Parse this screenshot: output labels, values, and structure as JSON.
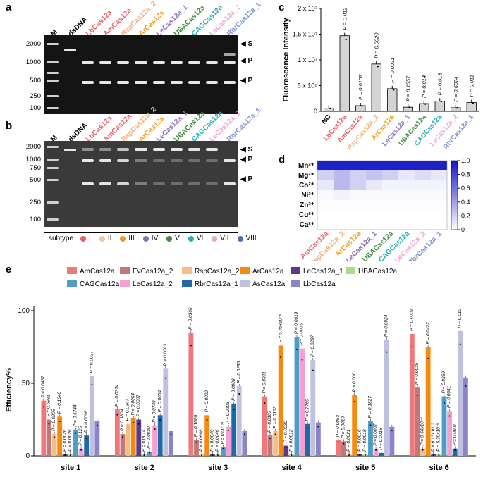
{
  "panels": {
    "a": "a",
    "b": "b",
    "c": "c",
    "d": "d",
    "e": "e"
  },
  "gel": {
    "marker_label": "M",
    "dsdna_label": "dsDNA",
    "ladder": [
      "2000",
      "1000",
      "750",
      "500",
      "250",
      "100"
    ],
    "arrow_s": "S",
    "arrow_p": "P",
    "lanes": [
      {
        "name": "LbCas12a",
        "color": "#e8616b"
      },
      {
        "name": "AmCas12a",
        "color": "#e8616b"
      },
      {
        "name": "RspCas12a_2",
        "color": "#f2b27a"
      },
      {
        "name": "ArCas12a",
        "color": "#f29a1d"
      },
      {
        "name": "LeCas12a_1",
        "color": "#8b6fb5"
      },
      {
        "name": "UBACas12a",
        "color": "#3e8a3a"
      },
      {
        "name": "CAGCas12a",
        "color": "#2ab0b8"
      },
      {
        "name": "LeCas12a_2",
        "color": "#f0a6cf"
      },
      {
        "name": "RbrCas12a_1",
        "color": "#7f93c7"
      }
    ]
  },
  "subtype_legend": {
    "title": "subtype",
    "items": [
      {
        "label": "I",
        "color": "#e8616b"
      },
      {
        "label": "II",
        "color": "#f2c8a0"
      },
      {
        "label": "III",
        "color": "#f29a1d"
      },
      {
        "label": "IV",
        "color": "#8b6fb5"
      },
      {
        "label": "V",
        "color": "#3e8a3a"
      },
      {
        "label": "VI",
        "color": "#2ab0b8"
      },
      {
        "label": "VII",
        "color": "#f0a6cf"
      },
      {
        "label": "VIII",
        "color": "#4a6cb8"
      }
    ]
  },
  "chart_data": [
    {
      "type": "bar",
      "ylabel": "Fluorescence Intensity",
      "ytick_labels": [
        "0",
        "5 x 10⁶",
        "1 x 10⁷",
        "1.5 x 10⁷",
        "2 x 10⁷"
      ],
      "ylim": [
        0,
        20000000
      ],
      "categories": [
        "NC",
        "LbCas12a",
        "AmCas12a",
        "RspCas12a_2",
        "ArCas12a",
        "LeCas12a_1",
        "UBACas12a",
        "CAGCas12a",
        "LeCas12a_2",
        "RbrCas12a_1"
      ],
      "category_colors": [
        "#000000",
        "#e8616b",
        "#e8616b",
        "#f2b27a",
        "#f29a1d",
        "#8b6fb5",
        "#3e8a3a",
        "#2ab0b8",
        "#f0a6cf",
        "#7f93c7"
      ],
      "values": [
        600000,
        14700000,
        1100000,
        9200000,
        4400000,
        800000,
        1500000,
        2000000,
        700000,
        1700000
      ],
      "pvalues": [
        "",
        "P = 0.012",
        "P = 0.0107",
        "P = 0.0020",
        "P = 0.0021",
        "P = 0.1557",
        "P = 0.014",
        "P = 0.018",
        "P = 0.6074",
        "P = 0.011"
      ]
    },
    {
      "type": "heatmap",
      "rows": [
        "Mn²⁺",
        "Mg²⁺",
        "Co²⁺",
        "Ni²⁺",
        "Zn²⁺",
        "Cu²⁺",
        "Ca²⁺"
      ],
      "columns": [
        "AmCas12a",
        "RspCas12a_2",
        "ArCas12a",
        "LeCas12a_1",
        "UBACas12a",
        "CAGCas12a",
        "LeCas12a_2",
        "RbrCas12a_1"
      ],
      "column_colors": [
        "#e8616b",
        "#f2b27a",
        "#f29a1d",
        "#8b6fb5",
        "#3e8a3a",
        "#2ab0b8",
        "#f0a6cf",
        "#7f93c7"
      ],
      "values": [
        [
          0.95,
          0.95,
          0.95,
          0.95,
          0.95,
          0.95,
          0.95,
          0.95
        ],
        [
          0.2,
          0.3,
          0.2,
          0.25,
          0.2,
          0.1,
          0.15,
          0.1
        ],
        [
          0.1,
          0.3,
          0.2,
          0.1,
          0.05,
          0.05,
          0.05,
          0.05
        ],
        [
          0.02,
          0.05,
          0.02,
          0.02,
          0.02,
          0.02,
          0.02,
          0.02
        ],
        [
          0.01,
          0.01,
          0.01,
          0.01,
          0.01,
          0.01,
          0.01,
          0.01
        ],
        [
          0.0,
          0.0,
          0.0,
          0.0,
          0.0,
          0.0,
          0.0,
          0.0
        ],
        [
          0.0,
          0.0,
          0.0,
          0.0,
          0.0,
          0.0,
          0.0,
          0.0
        ]
      ],
      "colorbar_ticks": [
        "0",
        "0.2",
        "0.4",
        "0.6",
        "0.8",
        "1.0"
      ],
      "range": [
        0,
        1
      ]
    },
    {
      "type": "bar",
      "ylabel": "Efficiency%",
      "ylim": [
        0,
        100
      ],
      "yticks": [
        "0",
        "50",
        "100"
      ],
      "categories": [
        "site 1",
        "site 2",
        "site 3",
        "site 4",
        "site 5",
        "site 6"
      ],
      "series": [
        {
          "name": "AmCas12a",
          "color": "#f0787c",
          "values": [
            38,
            32,
            85,
            41,
            11,
            84
          ],
          "pvalues": [
            "P = 0.0487",
            "P = 0.0314",
            "P = 0.0366",
            "P = 0.0391",
            "P = 0.0053",
            "P = 0.0002"
          ]
        },
        {
          "name": "EvCas12a_2",
          "color": "#c07878",
          "values": [
            25,
            15,
            11,
            14,
            10,
            47
          ],
          "pvalues": [
            "P = 0.5981",
            "P = 0.3804",
            "P = 0.1086",
            "P = 0.0107",
            "P = 0.0019",
            "P = 0.0035"
          ]
        },
        {
          "name": "RspCas12a_2",
          "color": "#f6be82",
          "values": [
            15,
            22,
            1,
            17,
            1,
            5
          ],
          "pvalues": [
            "P = 0.0205",
            "P = 0.0347",
            "P = 0.0668",
            "P = 0.0163",
            "P = 0.0021",
            "P = 9.68x10⁻⁵"
          ]
        },
        {
          "name": "ArCas12a",
          "color": "#f58a10",
          "values": [
            27,
            26,
            28,
            76,
            42,
            75
          ],
          "pvalues": [
            "P = 0.1340",
            "P = 0.0054",
            "P = 0.0022",
            "P = 5.46x10⁻⁵",
            "P = 0.0001",
            "P = 0.0422"
          ]
        },
        {
          "name": "LeCas12a_1",
          "color": "#5a3a8c",
          "values": [
            1,
            25,
            1,
            7,
            1,
            1
          ],
          "pvalues": [
            "P = 0.0026",
            "P = 0.0007",
            "P = 0.0049",
            "P = 0.0030",
            "P = 0.0016",
            "P = 6.13x10⁻⁵"
          ]
        },
        {
          "name": "UBACas12a",
          "color": "#a8dc8c",
          "values": [
            1,
            1,
            1,
            1,
            1,
            1
          ],
          "pvalues": [
            "P = 0.0026",
            "P = 0.0014",
            "P = 0.0046",
            "P = 0.0012",
            "P = 0.0018",
            "P = 5.30x10⁻⁵"
          ]
        },
        {
          "name": "CAGCas12a",
          "color": "#4e9cc8",
          "values": [
            18,
            3,
            6,
            82,
            24,
            41
          ],
          "pvalues": [
            "P = 0.5744",
            "P = 0.0030",
            "P = 0.0019",
            "P = 0.0019",
            "P = 0.1827",
            "P = 0.0369"
          ]
        },
        {
          "name": "LeCas12a_2",
          "color": "#f4a0d0",
          "values": [
            5,
            21,
            20,
            74,
            5,
            31
          ],
          "pvalues": [
            "P = 0.125",
            "P = 0.0749",
            "P = 0.2203",
            "P = 0.0005",
            "P = 0.0007",
            "P = 0.0041"
          ]
        },
        {
          "name": "RbrCas12a_1",
          "color": "#1e6aa8",
          "values": [
            14,
            28,
            36,
            22,
            2,
            5
          ],
          "pvalues": [
            "P = 0.0098",
            "P = 0.0004",
            "P = 0.0008",
            "P = 0.7760",
            "P = 0.0015",
            "P = 0.0001"
          ]
        },
        {
          "name": "AsCas12a",
          "color": "#c0c0e0",
          "values": [
            55,
            60,
            48,
            66,
            80,
            86
          ],
          "pvalues": [
            "P = 0.0027",
            "P = 0.0003",
            "P = 0.0295",
            "P = 0.0297",
            "P = 0.0024",
            "P = 0.012"
          ]
        },
        {
          "name": "LbCas12a",
          "color": "#8a84c8",
          "values": [
            24,
            17,
            17,
            23,
            20,
            54
          ],
          "pvalues": [
            "",
            "",
            "",
            "",
            "",
            ""
          ]
        }
      ]
    }
  ]
}
